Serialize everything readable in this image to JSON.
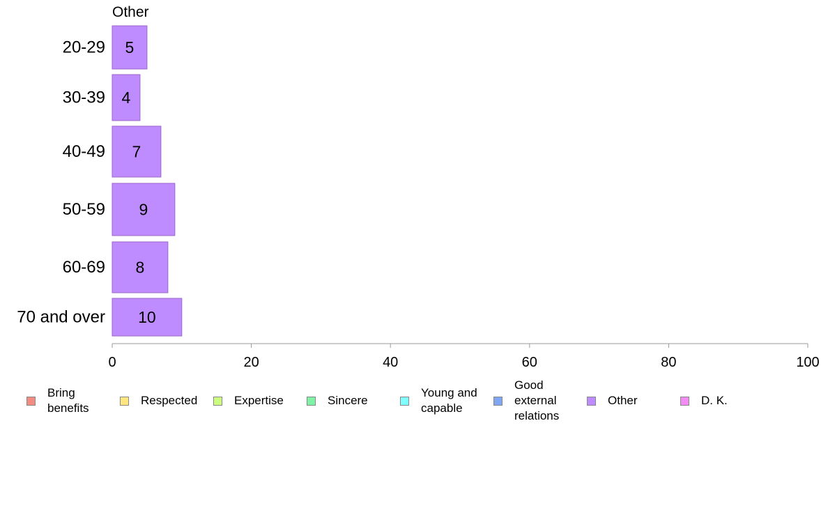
{
  "chart_data": {
    "type": "bar",
    "orientation": "horizontal",
    "title": "Other",
    "categories": [
      "20-29",
      "30-39",
      "40-49",
      "50-59",
      "60-69",
      "70 and over"
    ],
    "series": [
      {
        "name": "Other",
        "values": [
          5,
          4,
          7,
          9,
          8,
          10
        ],
        "color": "#bf8cff"
      }
    ],
    "xlim": [
      0,
      100
    ],
    "xticks": [
      0,
      20,
      40,
      60,
      80,
      100
    ],
    "grid": false,
    "legend_position": "bottom",
    "legend": [
      {
        "label": "Bring benefits",
        "color": "#f28b82"
      },
      {
        "label": "Respected",
        "color": "#ffe680"
      },
      {
        "label": "Expertise",
        "color": "#ccff80"
      },
      {
        "label": "Sincere",
        "color": "#80f2a6"
      },
      {
        "label": "Young and capable",
        "color": "#80ffff"
      },
      {
        "label": "Good external relations",
        "color": "#80a6f2"
      },
      {
        "label": "Other",
        "color": "#bf8cff"
      },
      {
        "label": "D. K.",
        "color": "#f28cf2"
      }
    ]
  }
}
